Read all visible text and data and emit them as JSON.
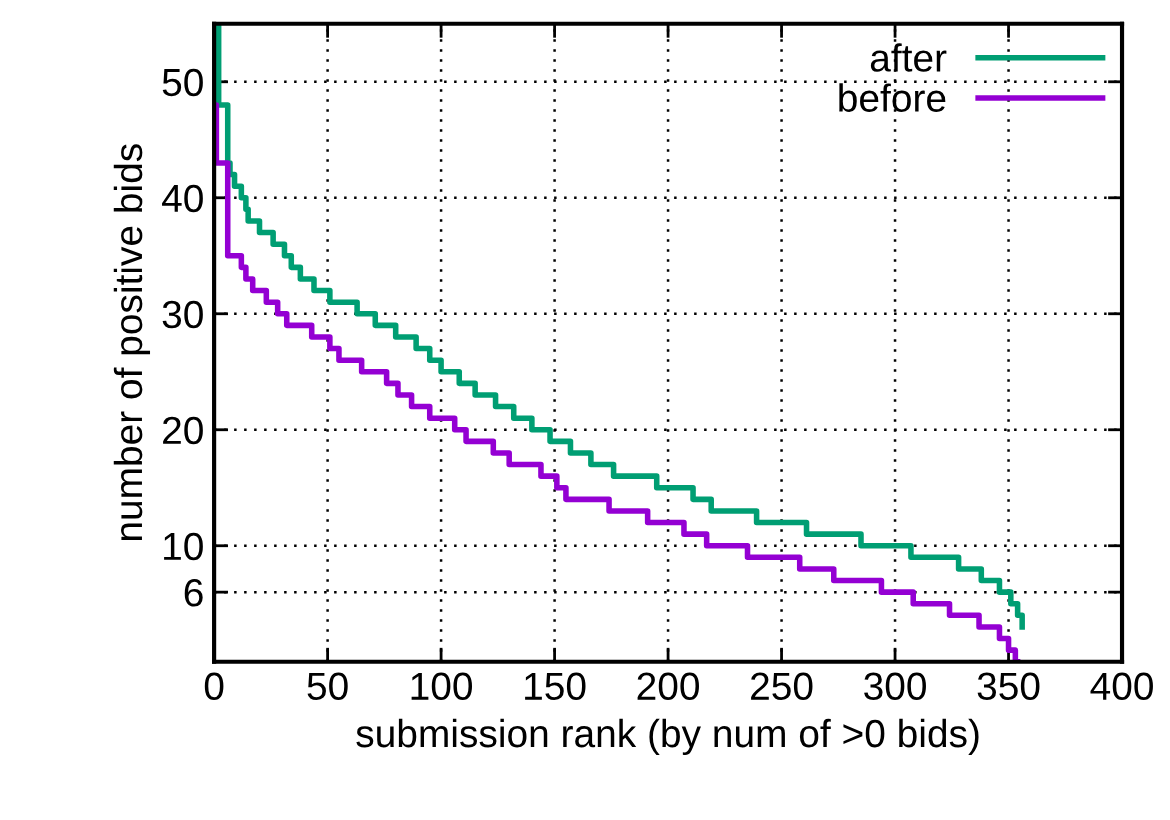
{
  "chart_data": {
    "type": "step",
    "xlabel": "submission rank (by num of >0 bids)",
    "ylabel": "number of positive bids",
    "xlim": [
      0,
      400
    ],
    "xticks": [
      0,
      50,
      100,
      150,
      200,
      250,
      300,
      350,
      400
    ],
    "ylim": [
      0,
      55
    ],
    "yticks": [
      6,
      10,
      20,
      30,
      40,
      50
    ],
    "grid": true,
    "legend": "top right",
    "line_style": "solid",
    "marker": "none",
    "series": [
      {
        "name": "after",
        "color": "#009e73",
        "x": [
          0,
          2,
          6,
          7,
          9,
          12,
          14,
          15,
          20,
          26,
          31,
          34,
          38,
          44,
          51,
          63,
          71,
          80,
          89,
          95,
          100,
          108,
          115,
          124,
          132,
          140,
          148,
          157,
          166,
          176,
          195,
          211,
          219,
          239,
          261,
          285,
          307,
          328,
          338,
          346,
          351,
          354,
          356
        ],
        "values": [
          55,
          48,
          43,
          42,
          41,
          40,
          39,
          38,
          37,
          36,
          35,
          34,
          33,
          32,
          31,
          30,
          29,
          28,
          27,
          26,
          25,
          24,
          23,
          22,
          21,
          20,
          19,
          18,
          17,
          16,
          15,
          14,
          13,
          12,
          11,
          10,
          9,
          8,
          7,
          6,
          5,
          4,
          3
        ]
      },
      {
        "name": "before",
        "color": "#9400d3",
        "x": [
          0,
          1,
          6,
          12,
          14,
          17,
          23,
          28,
          32,
          43,
          51,
          55,
          65,
          76,
          81,
          87,
          95,
          106,
          111,
          123,
          130,
          144,
          151,
          155,
          174,
          191,
          207,
          217,
          235,
          258,
          273,
          294,
          308,
          324,
          337,
          346,
          350,
          353,
          354
        ],
        "values": [
          48,
          43,
          35,
          34,
          33,
          32,
          31,
          30,
          29,
          28,
          27,
          26,
          25,
          24,
          23,
          22,
          21,
          20,
          19,
          18,
          17,
          16,
          15,
          14,
          13,
          12,
          11,
          10,
          9,
          8,
          7,
          6,
          5,
          4,
          3,
          2,
          1,
          0,
          0
        ]
      }
    ]
  }
}
